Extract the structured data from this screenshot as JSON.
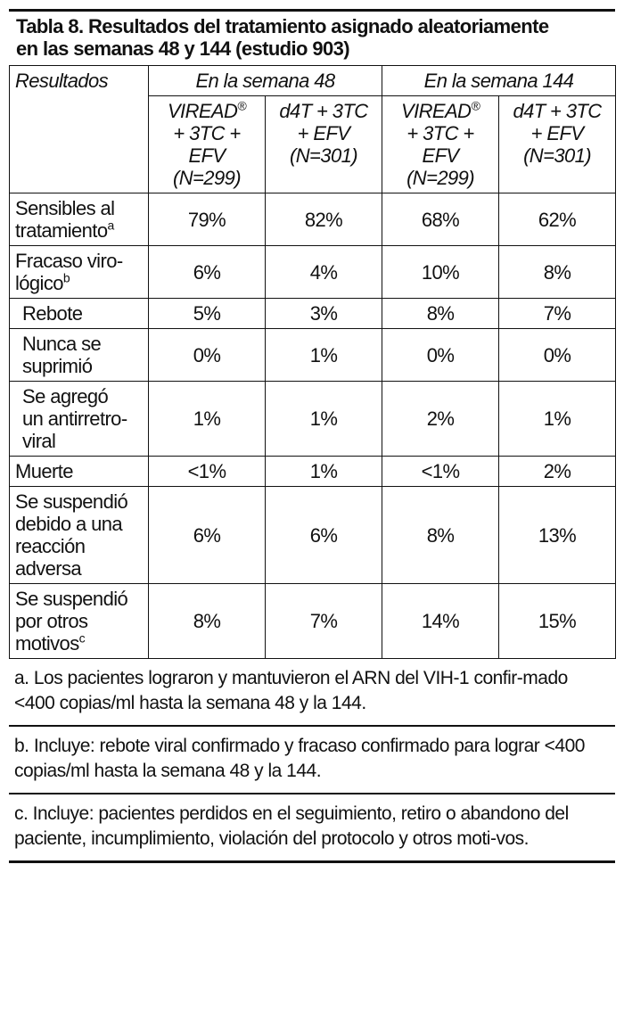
{
  "title": {
    "line1": "Tabla 8. Resultados del tratamiento asignado aleatoriamente",
    "line2": "en las semanas 48 y 144 (estudio 903)"
  },
  "header": {
    "resultados": "Resultados",
    "week48": "En la semana 48",
    "week144": "En la semana 144",
    "viread_top": "VIREAD",
    "viread_sup": "®",
    "viread_l2": "+ 3TC +",
    "viread_l3": "EFV",
    "n299": "(N=299)",
    "d4t_l1": "d4T + 3TC",
    "d4t_l2": "+ EFV",
    "n301": "(N=301)"
  },
  "rows": [
    {
      "l1": "Sensibles al",
      "l2": "tratamiento",
      "sup": "a",
      "v": [
        "79%",
        "82%",
        "68%",
        "62%"
      ]
    },
    {
      "l1": "Fracaso viro-",
      "l2": "lógico",
      "sup": "b",
      "v": [
        "6%",
        "4%",
        "10%",
        "8%"
      ]
    },
    {
      "l1": "Rebote",
      "v": [
        "5%",
        "3%",
        "8%",
        "7%"
      ]
    },
    {
      "l1": "Nunca se",
      "l2": "suprimió",
      "v": [
        "0%",
        "1%",
        "0%",
        "0%"
      ]
    },
    {
      "l1": "Se agregó",
      "l2": "un antirretro-",
      "l3": "viral",
      "v": [
        "1%",
        "1%",
        "2%",
        "1%"
      ]
    },
    {
      "l1": "Muerte",
      "v": [
        "<1%",
        "1%",
        "<1%",
        "2%"
      ]
    },
    {
      "l1": "Se suspendió",
      "l2": "debido a una",
      "l3": "reacción",
      "l4": "adversa",
      "v": [
        "6%",
        "6%",
        "8%",
        "13%"
      ]
    },
    {
      "l1": "Se suspendió",
      "l2": "por otros",
      "l3": "motivos",
      "sup": "c",
      "v": [
        "8%",
        "7%",
        "14%",
        "15%"
      ]
    }
  ],
  "notes": {
    "a": "a.  Los pacientes lograron y mantuvieron el ARN del VIH-1 confir-mado <400 copias/ml hasta la semana 48 y la 144.",
    "b": "b. Incluye: rebote viral confirmado y fracaso confirmado para lograr <400 copias/ml hasta la semana 48 y la 144.",
    "c": "c. Incluye: pacientes perdidos en el seguimiento, retiro o abandono del paciente, incumplimiento, violación del protocolo y otros moti-vos."
  }
}
